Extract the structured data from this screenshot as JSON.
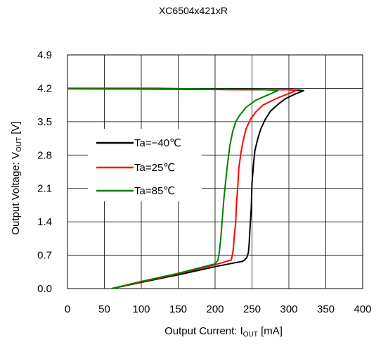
{
  "chart_data": {
    "type": "line",
    "title": "XC6504x421xR",
    "xlabel": {
      "prefix": "Output Current: I",
      "sub": "OUT",
      "suffix": " [mA]"
    },
    "ylabel": {
      "prefix": "Output Voltage: V",
      "sub": "OUT",
      "suffix": " [V]"
    },
    "xlim": [
      0,
      400
    ],
    "ylim": [
      0,
      4.9
    ],
    "x_ticks": [
      "0",
      "50",
      "100",
      "150",
      "200",
      "250",
      "300",
      "350",
      "400"
    ],
    "x_tick_values": [
      0,
      50,
      100,
      150,
      200,
      250,
      300,
      350,
      400
    ],
    "y_ticks": [
      "0.0",
      "0.7",
      "1.4",
      "2.1",
      "2.8",
      "3.5",
      "4.2",
      "4.9"
    ],
    "y_tick_values": [
      0,
      0.7,
      1.4,
      2.1,
      2.8,
      3.5,
      4.2,
      4.9
    ],
    "grid": true,
    "legend_position": "left-middle",
    "series": [
      {
        "name": "Ta=−40℃",
        "color": "#000000",
        "x": [
          0,
          150,
          270,
          300,
          312,
          320,
          310,
          295,
          285,
          275,
          268,
          262,
          258,
          254,
          252,
          250,
          249,
          247,
          246,
          245,
          243,
          240,
          237,
          230,
          200,
          150,
          100,
          60
        ],
        "y": [
          4.19,
          4.18,
          4.17,
          4.17,
          4.16,
          4.15,
          4.09,
          3.98,
          3.86,
          3.72,
          3.55,
          3.35,
          3.15,
          2.9,
          2.6,
          2.2,
          1.7,
          1.2,
          0.9,
          0.75,
          0.65,
          0.6,
          0.57,
          0.55,
          0.46,
          0.29,
          0.13,
          0.0
        ]
      },
      {
        "name": "Ta=25℃",
        "color": "#ff0000",
        "x": [
          0,
          150,
          270,
          300,
          310,
          305,
          285,
          265,
          255,
          248,
          242,
          238,
          235,
          232,
          231,
          229,
          228,
          226,
          225,
          224,
          222,
          200,
          150,
          100,
          60
        ],
        "y": [
          4.19,
          4.18,
          4.17,
          4.17,
          4.16,
          4.12,
          4.0,
          3.85,
          3.7,
          3.55,
          3.35,
          3.1,
          2.85,
          2.5,
          2.2,
          1.8,
          1.4,
          1.1,
          0.9,
          0.75,
          0.6,
          0.5,
          0.31,
          0.14,
          0.0
        ]
      },
      {
        "name": "Ta=85℃",
        "color": "#008000",
        "x": [
          0,
          120,
          220,
          270,
          285,
          270,
          255,
          242,
          234,
          228,
          224,
          220,
          218,
          216,
          214,
          212,
          210,
          208,
          206,
          204,
          200,
          150,
          100,
          60
        ],
        "y": [
          4.2,
          4.2,
          4.18,
          4.17,
          4.15,
          4.05,
          3.95,
          3.8,
          3.65,
          3.5,
          3.3,
          3.0,
          2.75,
          2.5,
          2.2,
          1.9,
          1.5,
          1.1,
          0.8,
          0.6,
          0.52,
          0.32,
          0.15,
          0.0
        ]
      }
    ]
  }
}
